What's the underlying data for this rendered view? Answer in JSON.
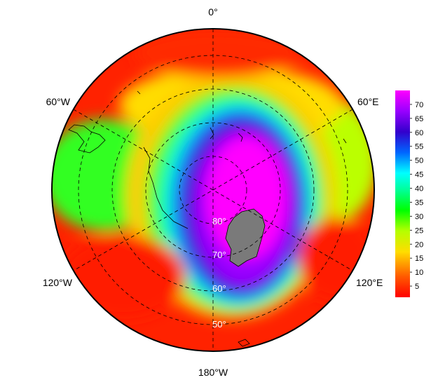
{
  "map": {
    "projection": "south-polar-stereographic",
    "longitude_labels": [
      {
        "text": "0°",
        "lon": 0
      },
      {
        "text": "60°E",
        "lon": 60
      },
      {
        "text": "120°E",
        "lon": 120
      },
      {
        "text": "180°W",
        "lon": 180
      },
      {
        "text": "120°W",
        "lon": -120
      },
      {
        "text": "60°W",
        "lon": -60
      }
    ],
    "latitude_labels": [
      {
        "text": "80°",
        "lat": 80
      },
      {
        "text": "70°",
        "lat": 70
      },
      {
        "text": "60°",
        "lat": 60
      },
      {
        "text": "50°",
        "lat": 50
      }
    ],
    "landmass_color": "#7a7a7a",
    "coastline_color": "#000000",
    "grid_style": "dashed"
  },
  "colorbar": {
    "ticks": [
      "5",
      "10",
      "15",
      "20",
      "25",
      "30",
      "35",
      "40",
      "45",
      "50",
      "55",
      "60",
      "65",
      "70"
    ],
    "min": 1,
    "max": 75,
    "colors": [
      "#ff0000",
      "#ff8000",
      "#ffff00",
      "#00ff00",
      "#00ffff",
      "#0060ff",
      "#4000cc",
      "#9900ff",
      "#ff00ff"
    ]
  }
}
